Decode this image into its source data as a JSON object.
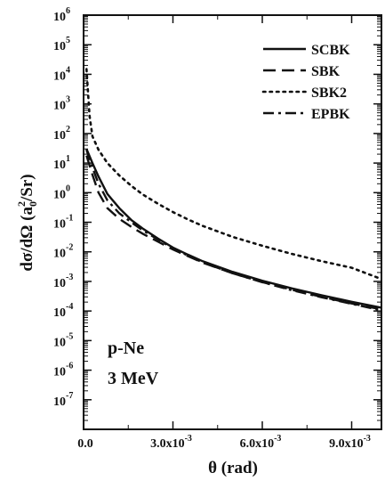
{
  "chart_data": {
    "type": "line",
    "title": "",
    "xlabel": "θ (rad)",
    "ylabel": "dσ/dΩ (a0²/Sr)",
    "ylabel_parts": {
      "main": "dσ/dΩ (a",
      "sub": "0",
      "sup": "2",
      "tail": "/Sr)"
    },
    "xlim": [
      0,
      0.01
    ],
    "ylim_exponent": [
      -8,
      6
    ],
    "yscale": "log",
    "x_ticks": [
      {
        "v": 0.0,
        "label": "0.0"
      },
      {
        "v": 0.003,
        "label": "3.0x10",
        "exp": "-3"
      },
      {
        "v": 0.006,
        "label": "6.0x10",
        "exp": "-3"
      },
      {
        "v": 0.009,
        "label": "9.0x10",
        "exp": "-3"
      }
    ],
    "y_ticks": [
      {
        "e": 6,
        "label": "10",
        "exp": "6"
      },
      {
        "e": 5,
        "label": "10",
        "exp": "5"
      },
      {
        "e": 4,
        "label": "10",
        "exp": "4"
      },
      {
        "e": 3,
        "label": "10",
        "exp": "3"
      },
      {
        "e": 2,
        "label": "10",
        "exp": "2"
      },
      {
        "e": 1,
        "label": "10",
        "exp": "1"
      },
      {
        "e": 0,
        "label": "10",
        "exp": "0"
      },
      {
        "e": -1,
        "label": "10",
        "exp": "-1"
      },
      {
        "e": -2,
        "label": "10",
        "exp": "-2"
      },
      {
        "e": -3,
        "label": "10",
        "exp": "-3"
      },
      {
        "e": -4,
        "label": "10",
        "exp": "-4"
      },
      {
        "e": -5,
        "label": "10",
        "exp": "-5"
      },
      {
        "e": -6,
        "label": "10",
        "exp": "-6"
      },
      {
        "e": -7,
        "label": "10",
        "exp": "-7"
      }
    ],
    "legend_position": "top-right",
    "annotations": [
      "p-Ne",
      "3 MeV"
    ],
    "series": [
      {
        "name": "SCBK",
        "style": "solid",
        "points": [
          [
            0.0001,
            30
          ],
          [
            0.0003,
            10
          ],
          [
            0.0005,
            3.5
          ],
          [
            0.0008,
            0.9
          ],
          [
            0.0012,
            0.3
          ],
          [
            0.0016,
            0.12
          ],
          [
            0.002,
            0.06
          ],
          [
            0.0025,
            0.028
          ],
          [
            0.003,
            0.014
          ],
          [
            0.0035,
            0.008
          ],
          [
            0.004,
            0.0048
          ],
          [
            0.005,
            0.0021
          ],
          [
            0.006,
            0.00105
          ],
          [
            0.007,
            0.00058
          ],
          [
            0.008,
            0.00034
          ],
          [
            0.009,
            0.000205
          ],
          [
            0.01,
            0.00013
          ]
        ]
      },
      {
        "name": "SBK",
        "style": "dashed",
        "points": [
          [
            0.0001,
            18
          ],
          [
            0.0003,
            4
          ],
          [
            0.0005,
            1.0
          ],
          [
            0.0008,
            0.3
          ],
          [
            0.0012,
            0.13
          ],
          [
            0.0016,
            0.07
          ],
          [
            0.002,
            0.04
          ],
          [
            0.0025,
            0.022
          ],
          [
            0.003,
            0.012
          ],
          [
            0.0035,
            0.0072
          ],
          [
            0.004,
            0.0043
          ],
          [
            0.005,
            0.0019
          ],
          [
            0.006,
            0.00095
          ],
          [
            0.007,
            0.00052
          ],
          [
            0.008,
            0.0003
          ],
          [
            0.009,
            0.00018
          ],
          [
            0.01,
            0.000113
          ]
        ]
      },
      {
        "name": "SBK2",
        "style": "dotted",
        "points": [
          [
            0.0001,
            15000
          ],
          [
            0.0002,
            400
          ],
          [
            0.0003,
            80
          ],
          [
            0.0005,
            28
          ],
          [
            0.0008,
            10
          ],
          [
            0.0012,
            3.8
          ],
          [
            0.0016,
            1.7
          ],
          [
            0.002,
            0.85
          ],
          [
            0.0025,
            0.42
          ],
          [
            0.003,
            0.22
          ],
          [
            0.0035,
            0.125
          ],
          [
            0.004,
            0.075
          ],
          [
            0.005,
            0.032
          ],
          [
            0.006,
            0.016
          ],
          [
            0.007,
            0.0085
          ],
          [
            0.008,
            0.0048
          ],
          [
            0.009,
            0.0029
          ],
          [
            0.01,
            0.0012
          ]
        ]
      },
      {
        "name": "EPBK",
        "style": "dashdot",
        "points": [
          [
            0.0001,
            28
          ],
          [
            0.0003,
            7
          ],
          [
            0.0005,
            2.0
          ],
          [
            0.0008,
            0.55
          ],
          [
            0.0012,
            0.2
          ],
          [
            0.0016,
            0.1
          ],
          [
            0.002,
            0.052
          ],
          [
            0.0025,
            0.026
          ],
          [
            0.003,
            0.013
          ],
          [
            0.0035,
            0.0075
          ],
          [
            0.004,
            0.0044
          ],
          [
            0.005,
            0.0019
          ],
          [
            0.006,
            0.00094
          ],
          [
            0.007,
            0.0005
          ],
          [
            0.008,
            0.00029
          ],
          [
            0.009,
            0.000175
          ],
          [
            0.01,
            0.000105
          ]
        ]
      }
    ]
  }
}
